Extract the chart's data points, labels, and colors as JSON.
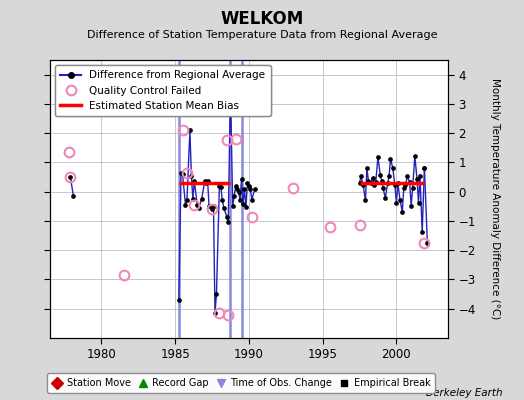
{
  "title": "WELKOM",
  "subtitle": "Difference of Station Temperature Data from Regional Average",
  "ylabel": "Monthly Temperature Anomaly Difference (°C)",
  "xlabel_credit": "Berkeley Earth",
  "xlim": [
    1976.5,
    2003.5
  ],
  "ylim": [
    -5,
    4.5
  ],
  "yticks": [
    -4,
    -3,
    -2,
    -1,
    0,
    1,
    2,
    3,
    4
  ],
  "xticks": [
    1980,
    1985,
    1990,
    1995,
    2000
  ],
  "background_color": "#d8d8d8",
  "plot_bg_color": "#ffffff",
  "grid_color": "#bbbbcc",
  "line_color": "#2222bb",
  "qc_color": "#ee88bb",
  "bias_color": "#ff0000",
  "vline_color": "#8888dd",
  "main_segments": [
    {
      "x": [
        1977.9,
        1978.1
      ],
      "y": [
        0.5,
        -0.15
      ]
    },
    {
      "x": [
        1985.25,
        1985.4,
        1985.5,
        1985.7,
        1985.8,
        1986.0,
        1986.1,
        1986.2,
        1986.3,
        1986.5,
        1986.6,
        1986.8,
        1987.0,
        1987.1,
        1987.2,
        1987.3,
        1987.5,
        1987.6,
        1987.7,
        1987.8,
        1988.0,
        1988.1,
        1988.2,
        1988.3,
        1988.5,
        1988.6,
        1988.75,
        1988.9,
        1989.0,
        1989.1,
        1989.2,
        1989.3,
        1989.4,
        1989.5,
        1989.6,
        1989.7,
        1989.8,
        1989.9,
        1990.0,
        1990.1,
        1990.2,
        1990.4
      ],
      "y": [
        -3.7,
        0.65,
        0.6,
        -0.45,
        -0.3,
        2.1,
        0.55,
        -0.25,
        0.35,
        -0.45,
        -0.55,
        -0.25,
        0.35,
        0.3,
        0.38,
        -0.5,
        -0.58,
        -0.48,
        -4.15,
        -3.5,
        0.2,
        0.15,
        -0.3,
        -0.55,
        -0.85,
        -1.05,
        3.6,
        -0.5,
        -0.15,
        0.2,
        0.1,
        0.0,
        -0.3,
        0.42,
        -0.42,
        0.08,
        -0.52,
        0.28,
        0.18,
        0.08,
        -0.28,
        0.1
      ]
    },
    {
      "x": [
        1997.5,
        1997.6,
        1997.75,
        1997.9,
        1998.0,
        1998.1,
        1998.25,
        1998.4,
        1998.5,
        1998.6,
        1998.75,
        1998.9,
        1999.0,
        1999.1,
        1999.25,
        1999.4,
        1999.5,
        1999.6,
        1999.75,
        1999.9,
        2000.0,
        2000.1,
        2000.25,
        2000.4,
        2000.5,
        2000.6,
        2000.75,
        2000.9,
        2001.0,
        2001.1,
        2001.25,
        2001.4,
        2001.5,
        2001.6,
        2001.75,
        2001.9
      ],
      "y": [
        0.3,
        0.52,
        0.22,
        -0.3,
        0.8,
        0.38,
        0.28,
        0.48,
        0.22,
        0.32,
        1.2,
        0.58,
        0.38,
        0.12,
        -0.22,
        0.28,
        0.52,
        1.12,
        0.82,
        0.22,
        -0.38,
        0.28,
        -0.3,
        -0.68,
        0.12,
        0.22,
        0.52,
        0.32,
        -0.48,
        0.12,
        1.22,
        0.42,
        -0.38,
        0.52,
        -1.38,
        0.82
      ]
    },
    {
      "x": [
        2001.9,
        2002.1
      ],
      "y": [
        0.82,
        -1.75
      ]
    }
  ],
  "qc_failed_points": [
    [
      1977.8,
      1.35
    ],
    [
      1977.9,
      0.5
    ],
    [
      1981.5,
      -2.85
    ],
    [
      1985.5,
      2.1
    ],
    [
      1985.8,
      0.65
    ],
    [
      1986.3,
      -0.45
    ],
    [
      1987.5,
      -0.58
    ],
    [
      1988.5,
      1.75
    ],
    [
      1989.1,
      1.8
    ],
    [
      1990.2,
      -0.85
    ],
    [
      1993.0,
      0.12
    ],
    [
      1995.5,
      -1.2
    ],
    [
      1988.0,
      -4.15
    ],
    [
      1988.6,
      -4.2
    ],
    [
      1997.5,
      -1.15
    ],
    [
      2001.9,
      -1.75
    ]
  ],
  "vlines_time_of_obs": [
    1985.25,
    1988.75,
    1989.5
  ],
  "bias_segments": [
    {
      "x": [
        1985.25,
        1988.75
      ],
      "y": [
        0.3,
        0.3
      ]
    },
    {
      "x": [
        1997.5,
        2001.9
      ],
      "y": [
        0.3,
        0.3
      ]
    }
  ]
}
